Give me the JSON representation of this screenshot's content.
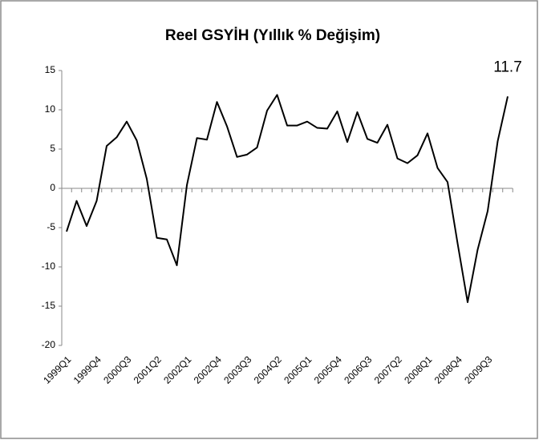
{
  "chart_data": {
    "type": "line",
    "title": "Reel GSYİH (Yıllık % Değişim)",
    "categories": [
      "1999Q1",
      null,
      null,
      "1999Q4",
      null,
      null,
      "2000Q3",
      null,
      null,
      "2001Q2",
      null,
      null,
      "2002Q1",
      null,
      null,
      "2002Q4",
      null,
      null,
      "2003Q3",
      null,
      null,
      "2004Q2",
      null,
      null,
      "2005Q1",
      null,
      null,
      "2005Q4",
      null,
      null,
      "2006Q3",
      null,
      null,
      "2007Q2",
      null,
      null,
      "2008Q1",
      null,
      null,
      "2008Q4",
      null,
      null,
      "2009Q3",
      null,
      null
    ],
    "values": [
      -5.5,
      -1.6,
      -4.8,
      -1.6,
      5.4,
      6.5,
      8.5,
      6.1,
      1.2,
      -6.3,
      -6.5,
      -9.8,
      0.4,
      6.4,
      6.2,
      11.0,
      7.9,
      4.0,
      4.3,
      5.2,
      9.9,
      11.9,
      8.0,
      8.0,
      8.5,
      7.7,
      7.6,
      9.8,
      5.9,
      9.7,
      6.3,
      5.8,
      8.1,
      3.8,
      3.2,
      4.2,
      7.0,
      2.6,
      0.8,
      -7.0,
      -14.5,
      -7.8,
      -2.9,
      6.0,
      11.7
    ],
    "value_labels": [
      null,
      null,
      null,
      null,
      null,
      null,
      null,
      null,
      null,
      null,
      null,
      null,
      null,
      null,
      null,
      null,
      null,
      null,
      null,
      null,
      null,
      null,
      null,
      null,
      null,
      null,
      null,
      null,
      null,
      null,
      null,
      null,
      null,
      null,
      null,
      null,
      null,
      null,
      null,
      null,
      null,
      null,
      null,
      null,
      "11.7"
    ],
    "color": "#000000",
    "ylim": [
      -20,
      15
    ],
    "yticks": [
      -20,
      -15,
      -10,
      -5,
      0,
      5,
      10,
      15
    ],
    "grid": false
  }
}
